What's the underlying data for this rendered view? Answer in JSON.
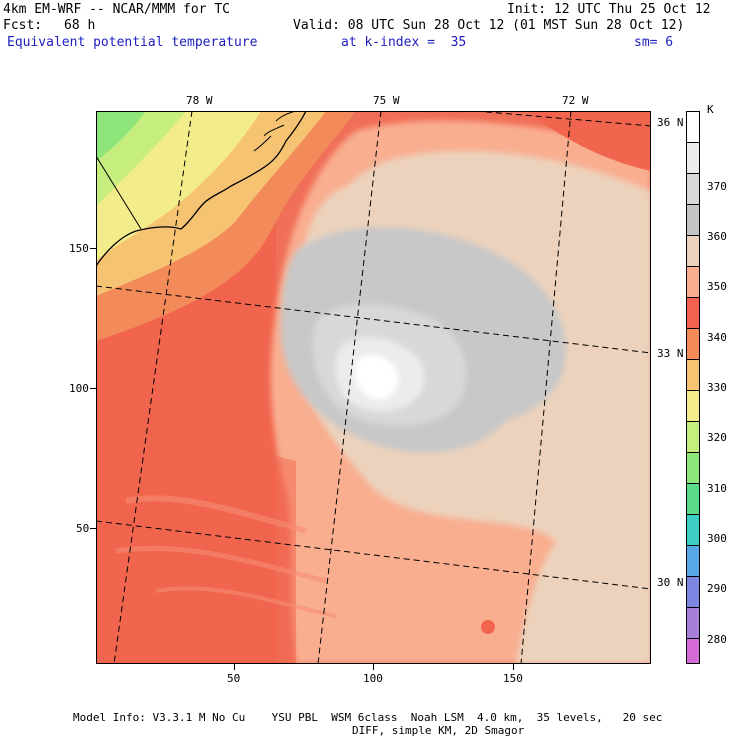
{
  "header": {
    "model_line": "4km EM-WRF -- NCAR/MMM for TC",
    "init_line": "Init: 12 UTC Thu 25 Oct 12",
    "fcst_label": "Fcst:",
    "fcst_value": "68 h",
    "valid_line": "Valid: 08 UTC Sun 28 Oct 12 (01 MST Sun 28 Oct 12)",
    "field_name": "Equivalent potential temperature",
    "level_label": "at k-index =  35",
    "smooth_label": "sm= 6"
  },
  "map": {
    "top_lon_labels": [
      "78 W",
      "75 W",
      "72 W"
    ],
    "right_lat_labels": [
      "36 N",
      "33 N",
      "30 N"
    ],
    "y_ticks": [
      "150",
      "100",
      "50"
    ],
    "x_ticks": [
      "50",
      "100",
      "150"
    ]
  },
  "colorbar": {
    "unit": "K",
    "levels": [
      "370",
      "360",
      "350",
      "340",
      "330",
      "320",
      "310",
      "300",
      "290",
      "280"
    ],
    "colors": [
      "#ffffff",
      "#ececec",
      "#d8d8d8",
      "#c4c4c4",
      "#ecd2bc",
      "#f9ae90",
      "#f2624f",
      "#f28a5a",
      "#f6c373",
      "#f3ec8a",
      "#c6ee7e",
      "#8ee67a",
      "#5bda8b",
      "#3ccdc4",
      "#56a8e6",
      "#7d86e0",
      "#a77ed8",
      "#d46ad6"
    ]
  },
  "footer": {
    "line1": "Model Info: V3.3.1 M No Cu    YSU PBL  WSM 6class  Noah LSM  4.0 km,  35 levels,   20 sec",
    "line2": "DIFF, simple KM, 2D Smagor"
  }
}
